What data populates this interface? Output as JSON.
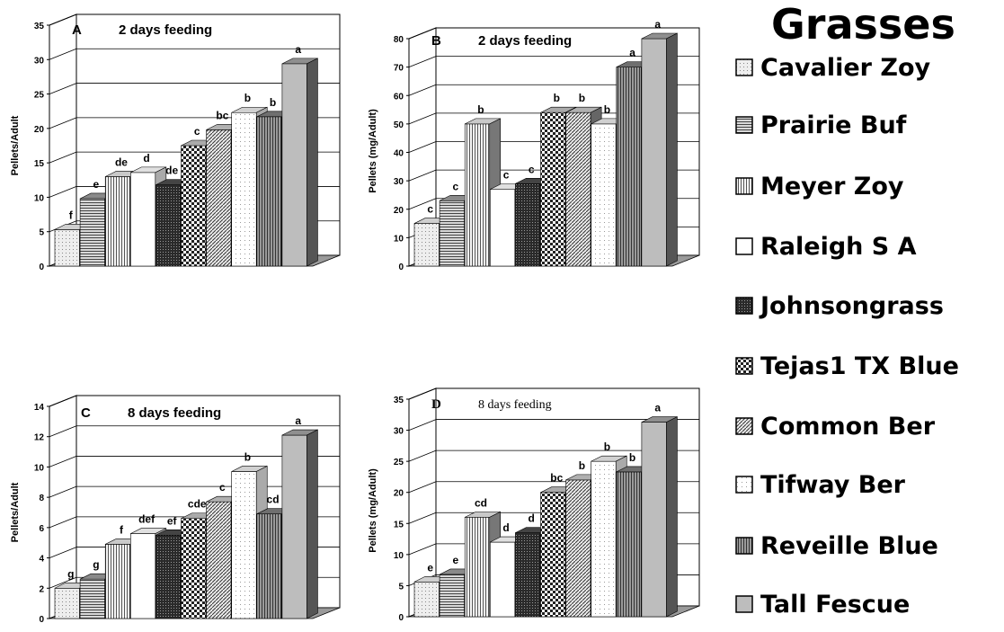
{
  "legend": {
    "title": "Grasses",
    "items": [
      {
        "label": "Cavalier Zoy",
        "pattern": "dots-light",
        "fill": "#e6e6e6"
      },
      {
        "label": "Prairie Buf",
        "pattern": "hlines",
        "fill": "#bdbdbd"
      },
      {
        "label": "Meyer Zoy",
        "pattern": "vlines",
        "fill": "#f2f2f2"
      },
      {
        "label": "Raleigh S A",
        "pattern": "solid",
        "fill": "#ffffff"
      },
      {
        "label": "Johnsongrass",
        "pattern": "dark-dots",
        "fill": "#3a3a3a"
      },
      {
        "label": "Tejas1 TX Blue",
        "pattern": "checks",
        "fill": "#d0d0d0"
      },
      {
        "label": "Common Ber",
        "pattern": "diag",
        "fill": "#dcdcdc"
      },
      {
        "label": "Tifway Ber",
        "pattern": "dots-white",
        "fill": "#ffffff"
      },
      {
        "label": "Reveille Blue",
        "pattern": "vlines-dark",
        "fill": "#8a8a8a"
      },
      {
        "label": "Tall Fescue",
        "pattern": "solid",
        "fill": "#bfbfbf"
      }
    ]
  },
  "chart_data": [
    {
      "type": "bar",
      "panel": "A",
      "title": "2 days feeding",
      "ylabel": "Pellets/Adult",
      "xlabel": "",
      "ylim": [
        0,
        35
      ],
      "yticks": [
        0,
        5,
        10,
        15,
        20,
        25,
        30,
        35
      ],
      "grid": true,
      "categories": [
        "Cavalier Zoy",
        "Prairie Buf",
        "Meyer Zoy",
        "Raleigh S A",
        "Johnsongrass",
        "Tejas1 TX Blue",
        "Common Ber",
        "Tifway Ber",
        "Reveille Blue",
        "Tall Fescue"
      ],
      "values": [
        5.3,
        9.8,
        13.0,
        13.6,
        11.8,
        17.5,
        19.8,
        22.3,
        21.7,
        29.4
      ],
      "letters": [
        "f",
        "e",
        "de",
        "d",
        "de",
        "c",
        "bc",
        "b",
        "b",
        "a"
      ]
    },
    {
      "type": "bar",
      "panel": "B",
      "title": "2 days feeding",
      "ylabel": "Pellets (mg/Adult)",
      "xlabel": "",
      "ylim": [
        0,
        80
      ],
      "yticks": [
        0,
        10,
        20,
        30,
        40,
        50,
        60,
        70,
        80
      ],
      "grid": true,
      "categories": [
        "Cavalier Zoy",
        "Prairie Buf",
        "Meyer Zoy",
        "Raleigh S A",
        "Johnsongrass",
        "Tejas1 TX Blue",
        "Common Ber",
        "Tifway Ber",
        "Reveille Blue",
        "Tall Fescue"
      ],
      "values": [
        15,
        23,
        50,
        27,
        29,
        54,
        54,
        50,
        70,
        80
      ],
      "letters": [
        "c",
        "c",
        "b",
        "c",
        "c",
        "b",
        "b",
        "b",
        "a",
        "a"
      ]
    },
    {
      "type": "bar",
      "panel": "C",
      "title": "8 days feeding",
      "ylabel": "Pellets/Adult",
      "xlabel": "",
      "ylim": [
        0,
        14
      ],
      "yticks": [
        0,
        2,
        4,
        6,
        8,
        10,
        12,
        14
      ],
      "grid": true,
      "categories": [
        "Cavalier Zoy",
        "Prairie Buf",
        "Meyer Zoy",
        "Raleigh S A",
        "Johnsongrass",
        "Tejas1 TX Blue",
        "Common Ber",
        "Tifway Ber",
        "Reveille Blue",
        "Tall Fescue"
      ],
      "values": [
        2.0,
        2.6,
        4.9,
        5.6,
        5.5,
        6.6,
        7.7,
        9.7,
        6.9,
        12.1
      ],
      "letters": [
        "g",
        "g",
        "f",
        "def",
        "ef",
        "cde",
        "c",
        "b",
        "cd",
        "a"
      ]
    },
    {
      "type": "bar",
      "panel": "D",
      "title": "8 days feeding",
      "ylabel": "Pellets (mg/Adult)",
      "xlabel": "",
      "ylim": [
        0,
        35
      ],
      "yticks": [
        0,
        5,
        10,
        15,
        20,
        25,
        30,
        35
      ],
      "grid": true,
      "categories": [
        "Cavalier Zoy",
        "Prairie Buf",
        "Meyer Zoy",
        "Raleigh S A",
        "Johnsongrass",
        "Tejas1 TX Blue",
        "Common Ber",
        "Tifway Ber",
        "Reveille Blue",
        "Tall Fescue"
      ],
      "values": [
        5.6,
        6.8,
        16.0,
        12.0,
        13.5,
        20.0,
        22.0,
        25.0,
        23.3,
        31.3
      ],
      "letters": [
        "e",
        "e",
        "cd",
        "d",
        "d",
        "bc",
        "b",
        "b",
        "b",
        "a"
      ]
    }
  ]
}
